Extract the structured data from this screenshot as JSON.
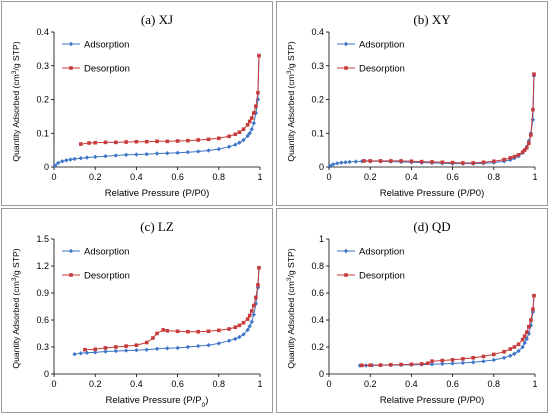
{
  "chart_data": [
    {
      "type": "line",
      "title": "(a) XJ",
      "xlabel": "Relative Pressure (P/P0)",
      "ylabel_parts": [
        "Quantity Adsorbed (cm",
        "3",
        "/g STP)"
      ],
      "xlim": [
        0,
        1
      ],
      "ylim": [
        0,
        0.4
      ],
      "xticks": [
        "0",
        "0.2",
        "0.4",
        "0.6",
        "0.8",
        "1"
      ],
      "yticks": [
        "0",
        "0.1",
        "0.2",
        "0.3",
        "0.4"
      ],
      "legend_position": "top-left",
      "series": [
        {
          "name": "Adsorption",
          "color": "#3f76c9",
          "marker": "diamond",
          "x": [
            0.005,
            0.02,
            0.04,
            0.06,
            0.08,
            0.1,
            0.13,
            0.16,
            0.2,
            0.25,
            0.3,
            0.35,
            0.4,
            0.45,
            0.5,
            0.55,
            0.6,
            0.65,
            0.7,
            0.75,
            0.8,
            0.85,
            0.88,
            0.9,
            0.92,
            0.94,
            0.95,
            0.96,
            0.97,
            0.98,
            0.99,
            0.995
          ],
          "y": [
            0.004,
            0.012,
            0.017,
            0.02,
            0.022,
            0.024,
            0.026,
            0.028,
            0.03,
            0.032,
            0.034,
            0.036,
            0.037,
            0.038,
            0.04,
            0.041,
            0.042,
            0.044,
            0.046,
            0.049,
            0.053,
            0.06,
            0.066,
            0.072,
            0.08,
            0.092,
            0.1,
            0.112,
            0.13,
            0.16,
            0.2,
            0.33
          ]
        },
        {
          "name": "Desorption",
          "color": "#c63b3b",
          "marker": "square",
          "x": [
            0.995,
            0.99,
            0.98,
            0.97,
            0.96,
            0.95,
            0.94,
            0.92,
            0.9,
            0.88,
            0.85,
            0.8,
            0.75,
            0.7,
            0.65,
            0.6,
            0.55,
            0.5,
            0.45,
            0.4,
            0.35,
            0.3,
            0.25,
            0.2,
            0.17,
            0.13
          ],
          "y": [
            0.33,
            0.22,
            0.18,
            0.16,
            0.145,
            0.135,
            0.125,
            0.112,
            0.103,
            0.097,
            0.091,
            0.085,
            0.082,
            0.08,
            0.078,
            0.077,
            0.076,
            0.076,
            0.075,
            0.075,
            0.074,
            0.073,
            0.073,
            0.072,
            0.071,
            0.068
          ]
        }
      ]
    },
    {
      "type": "line",
      "title": "(b) XY",
      "xlabel": "Relative Pressure (P/P0)",
      "ylabel_parts": [
        "Quantity Adsorbed (cm",
        "3",
        "/g STP)"
      ],
      "xlim": [
        0,
        1
      ],
      "ylim": [
        0,
        0.4
      ],
      "xticks": [
        "0",
        "0.2",
        "0.4",
        "0.6",
        "0.8",
        "1"
      ],
      "yticks": [
        "0",
        "0.1",
        "0.2",
        "0.3",
        "0.4"
      ],
      "legend_position": "top-left",
      "series": [
        {
          "name": "Adsorption",
          "color": "#3f76c9",
          "marker": "diamond",
          "x": [
            0.005,
            0.02,
            0.04,
            0.06,
            0.08,
            0.1,
            0.13,
            0.16,
            0.2,
            0.25,
            0.3,
            0.35,
            0.4,
            0.45,
            0.5,
            0.55,
            0.6,
            0.65,
            0.7,
            0.75,
            0.8,
            0.85,
            0.88,
            0.9,
            0.92,
            0.94,
            0.95,
            0.96,
            0.97,
            0.98,
            0.99,
            0.995
          ],
          "y": [
            0.003,
            0.008,
            0.011,
            0.013,
            0.014,
            0.015,
            0.016,
            0.017,
            0.017,
            0.017,
            0.016,
            0.015,
            0.014,
            0.013,
            0.012,
            0.011,
            0.01,
            0.01,
            0.01,
            0.011,
            0.013,
            0.017,
            0.021,
            0.026,
            0.032,
            0.042,
            0.05,
            0.06,
            0.077,
            0.1,
            0.14,
            0.27
          ]
        },
        {
          "name": "Desorption",
          "color": "#c63b3b",
          "marker": "square",
          "x": [
            0.995,
            0.99,
            0.98,
            0.97,
            0.96,
            0.95,
            0.94,
            0.92,
            0.9,
            0.88,
            0.85,
            0.8,
            0.75,
            0.7,
            0.65,
            0.6,
            0.55,
            0.5,
            0.45,
            0.4,
            0.35,
            0.3,
            0.25,
            0.2,
            0.17
          ],
          "y": [
            0.275,
            0.17,
            0.095,
            0.07,
            0.057,
            0.05,
            0.044,
            0.036,
            0.031,
            0.027,
            0.022,
            0.017,
            0.014,
            0.012,
            0.012,
            0.013,
            0.014,
            0.015,
            0.016,
            0.017,
            0.018,
            0.018,
            0.018,
            0.018,
            0.018
          ]
        }
      ]
    },
    {
      "type": "line",
      "title": "(c) LZ",
      "xlabel_parts": [
        "Relative Pressure (P/P",
        "0",
        ")"
      ],
      "ylabel_parts": [
        "Quantity Adsorbed (cm",
        "3",
        "/g STP)"
      ],
      "xlim": [
        0,
        1
      ],
      "ylim": [
        0,
        1.5
      ],
      "xticks": [
        "0",
        "0.2",
        "0.4",
        "0.6",
        "0.8",
        "1"
      ],
      "yticks": [
        "0",
        "0.3",
        "0.6",
        "0.9",
        "1.2",
        "1.5"
      ],
      "legend_position": "top-left",
      "series": [
        {
          "name": "Adsorption",
          "color": "#3f76c9",
          "marker": "diamond",
          "x": [
            0.1,
            0.13,
            0.16,
            0.2,
            0.25,
            0.3,
            0.35,
            0.4,
            0.45,
            0.5,
            0.55,
            0.6,
            0.65,
            0.7,
            0.75,
            0.8,
            0.85,
            0.88,
            0.9,
            0.92,
            0.94,
            0.95,
            0.96,
            0.97,
            0.98,
            0.99,
            0.995
          ],
          "y": [
            0.22,
            0.23,
            0.235,
            0.24,
            0.25,
            0.255,
            0.26,
            0.265,
            0.27,
            0.28,
            0.285,
            0.29,
            0.3,
            0.31,
            0.32,
            0.34,
            0.37,
            0.39,
            0.41,
            0.44,
            0.49,
            0.53,
            0.58,
            0.66,
            0.78,
            0.96,
            1.18
          ]
        },
        {
          "name": "Desorption",
          "color": "#c63b3b",
          "marker": "square",
          "x": [
            0.995,
            0.99,
            0.98,
            0.97,
            0.96,
            0.95,
            0.94,
            0.92,
            0.9,
            0.88,
            0.85,
            0.8,
            0.75,
            0.7,
            0.65,
            0.6,
            0.55,
            0.53,
            0.5,
            0.48,
            0.45,
            0.4,
            0.35,
            0.3,
            0.25,
            0.2,
            0.15
          ],
          "y": [
            1.18,
            0.99,
            0.85,
            0.76,
            0.7,
            0.65,
            0.61,
            0.57,
            0.54,
            0.52,
            0.5,
            0.485,
            0.475,
            0.47,
            0.47,
            0.475,
            0.48,
            0.49,
            0.45,
            0.4,
            0.35,
            0.32,
            0.31,
            0.3,
            0.29,
            0.275,
            0.27
          ]
        }
      ]
    },
    {
      "type": "line",
      "title": "(d) QD",
      "xlabel": "Relative Pressure (P/P0)",
      "ylabel_parts": [
        "Quantity Adsorbed (cm",
        "3",
        "/g STP)"
      ],
      "xlim": [
        0,
        1
      ],
      "ylim": [
        0,
        1
      ],
      "xticks": [
        "0",
        "0.2",
        "0.4",
        "0.6",
        "0.8",
        "1"
      ],
      "yticks": [
        "0",
        "0.2",
        "0.4",
        "0.6",
        "0.8",
        "1"
      ],
      "legend_position": "top-left",
      "series": [
        {
          "name": "Adsorption",
          "color": "#3f76c9",
          "marker": "diamond",
          "x": [
            0.15,
            0.18,
            0.21,
            0.25,
            0.3,
            0.35,
            0.4,
            0.45,
            0.5,
            0.55,
            0.6,
            0.65,
            0.7,
            0.75,
            0.8,
            0.85,
            0.88,
            0.9,
            0.92,
            0.94,
            0.95,
            0.96,
            0.97,
            0.98,
            0.99,
            0.995
          ],
          "y": [
            0.062,
            0.063,
            0.064,
            0.065,
            0.066,
            0.067,
            0.068,
            0.07,
            0.072,
            0.075,
            0.078,
            0.082,
            0.087,
            0.094,
            0.104,
            0.12,
            0.135,
            0.15,
            0.17,
            0.2,
            0.23,
            0.26,
            0.3,
            0.36,
            0.46,
            0.58
          ]
        },
        {
          "name": "Desorption",
          "color": "#c63b3b",
          "marker": "square",
          "x": [
            0.995,
            0.99,
            0.98,
            0.97,
            0.96,
            0.95,
            0.94,
            0.92,
            0.9,
            0.88,
            0.85,
            0.8,
            0.75,
            0.7,
            0.65,
            0.6,
            0.55,
            0.5,
            0.48,
            0.45,
            0.4,
            0.35,
            0.3,
            0.25,
            0.2,
            0.16
          ],
          "y": [
            0.58,
            0.48,
            0.4,
            0.35,
            0.31,
            0.28,
            0.255,
            0.22,
            0.2,
            0.185,
            0.165,
            0.145,
            0.13,
            0.12,
            0.112,
            0.105,
            0.1,
            0.095,
            0.08,
            0.075,
            0.072,
            0.07,
            0.068,
            0.066,
            0.065,
            0.064
          ]
        }
      ]
    }
  ]
}
